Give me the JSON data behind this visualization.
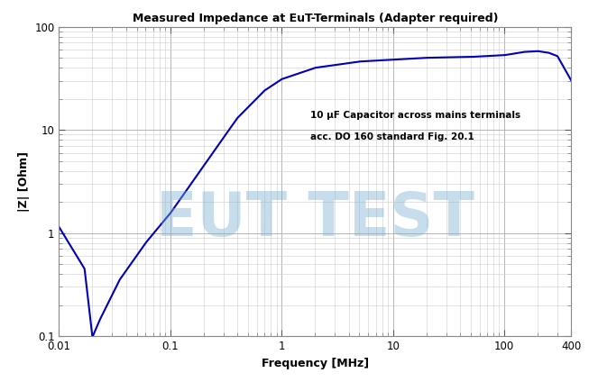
{
  "title": "Measured Impedance at EuT-Terminals (Adapter required)",
  "xlabel": "Frequency [MHz]",
  "ylabel": "|Z| [Ohm]",
  "annotation_line1": "10 μF Capacitor across mains terminals",
  "annotation_line2": "acc. DO 160 standard Fig. 20.1",
  "watermark": "EUT TEST",
  "watermark_color": "#7ab0d0",
  "watermark_alpha": 0.42,
  "line_color": "#0000bb",
  "background_color": "#ffffff",
  "grid_major_color": "#aaaaaa",
  "grid_minor_color": "#cccccc",
  "xlim_log": [
    0.01,
    400
  ],
  "ylim_log": [
    0.1,
    100
  ],
  "figsize": [
    6.53,
    4.24
  ],
  "dpi": 100,
  "key_f": [
    0.01,
    0.017,
    0.02,
    0.023,
    0.035,
    0.06,
    0.1,
    0.2,
    0.4,
    0.7,
    1.0,
    2.0,
    5.0,
    10,
    20,
    50,
    100,
    150,
    200,
    250,
    300,
    400
  ],
  "key_Z": [
    1.15,
    0.45,
    0.098,
    0.14,
    0.35,
    0.8,
    1.55,
    4.5,
    13,
    24,
    31,
    40,
    46,
    48,
    50,
    51,
    53,
    57,
    58,
    56,
    52,
    30
  ]
}
